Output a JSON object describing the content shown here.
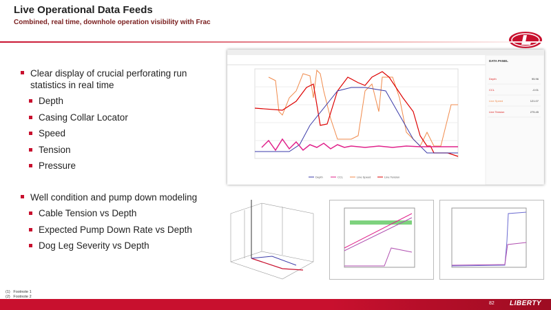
{
  "header": {
    "title": "Live Operational Data Feeds",
    "subtitle": "Combined, real time, downhole operation visibility with Frac"
  },
  "bullets": [
    {
      "text": "Clear display of crucial perforating run statistics in real time",
      "items": [
        "Depth",
        "Casing Collar Locator",
        "Speed",
        "Tension",
        "Pressure"
      ]
    },
    {
      "text": "Well condition and pump down modeling",
      "items": [
        "Cable Tension vs Depth",
        "Expected Pump Down Rate vs Depth",
        "Dog Leg Severity vs Depth"
      ]
    }
  ],
  "screenshot": {
    "panel_title": "DATA PANEL",
    "rows": [
      {
        "label": "Depth",
        "value": "95.96"
      },
      {
        "label": "CCL",
        "value": "-0.01"
      },
      {
        "label": "Line Speed",
        "value": "121.07"
      },
      {
        "label": "Line Tension",
        "value": "275.45"
      }
    ],
    "legend": [
      "Depth",
      "CCL",
      "Line Speed",
      "Line Tension"
    ]
  },
  "footnotes": [
    {
      "marker": "(1)",
      "text": "Footnote 1"
    },
    {
      "marker": "(2)",
      "text": "Footnote 2"
    }
  ],
  "footer": {
    "page": "82",
    "brand": "LIBERTY"
  }
}
